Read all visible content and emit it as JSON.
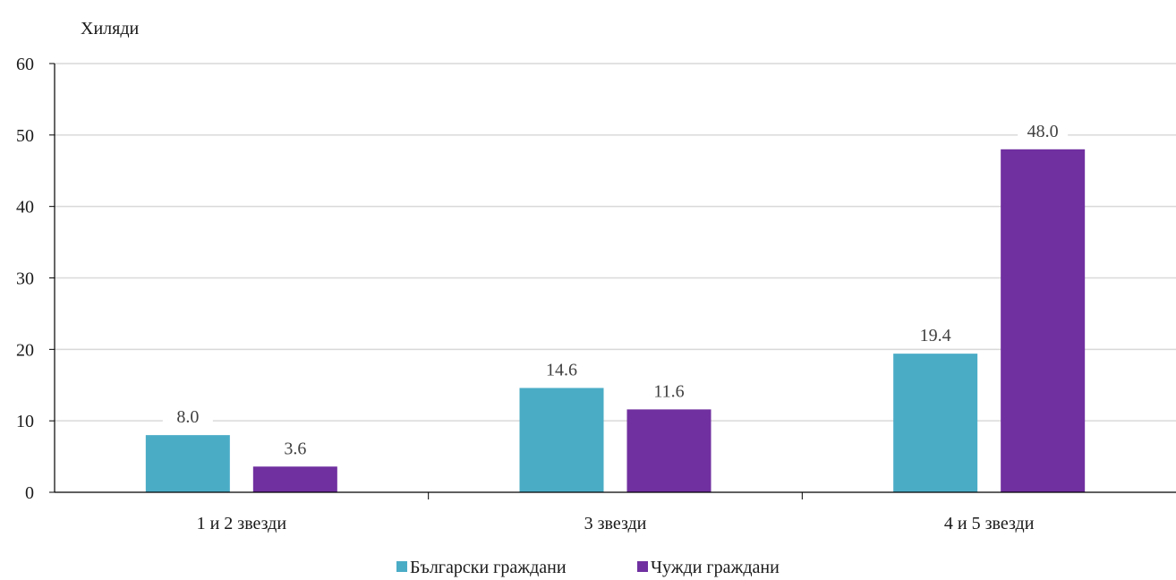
{
  "chart_data": {
    "type": "bar",
    "ylabel": "Хиляди",
    "categories": [
      "1 и 2 звезди",
      "3 звезди",
      "4 и 5 звезди"
    ],
    "series": [
      {
        "name": "Български граждани",
        "values": [
          8.0,
          14.6,
          19.4
        ],
        "value_labels": [
          "8.0",
          "14.6",
          "19.4"
        ],
        "color": "#4bacc6"
      },
      {
        "name": "Чужди граждани",
        "values": [
          3.6,
          11.6,
          48.0
        ],
        "value_labels": [
          "3.6",
          "11.6",
          "48.0"
        ],
        "color": "#7030a0"
      }
    ],
    "ylim": [
      0,
      60
    ],
    "yticks": [
      "0",
      "10",
      "20",
      "30",
      "40",
      "50",
      "60"
    ],
    "grid": true,
    "legend_position": "bottom"
  }
}
